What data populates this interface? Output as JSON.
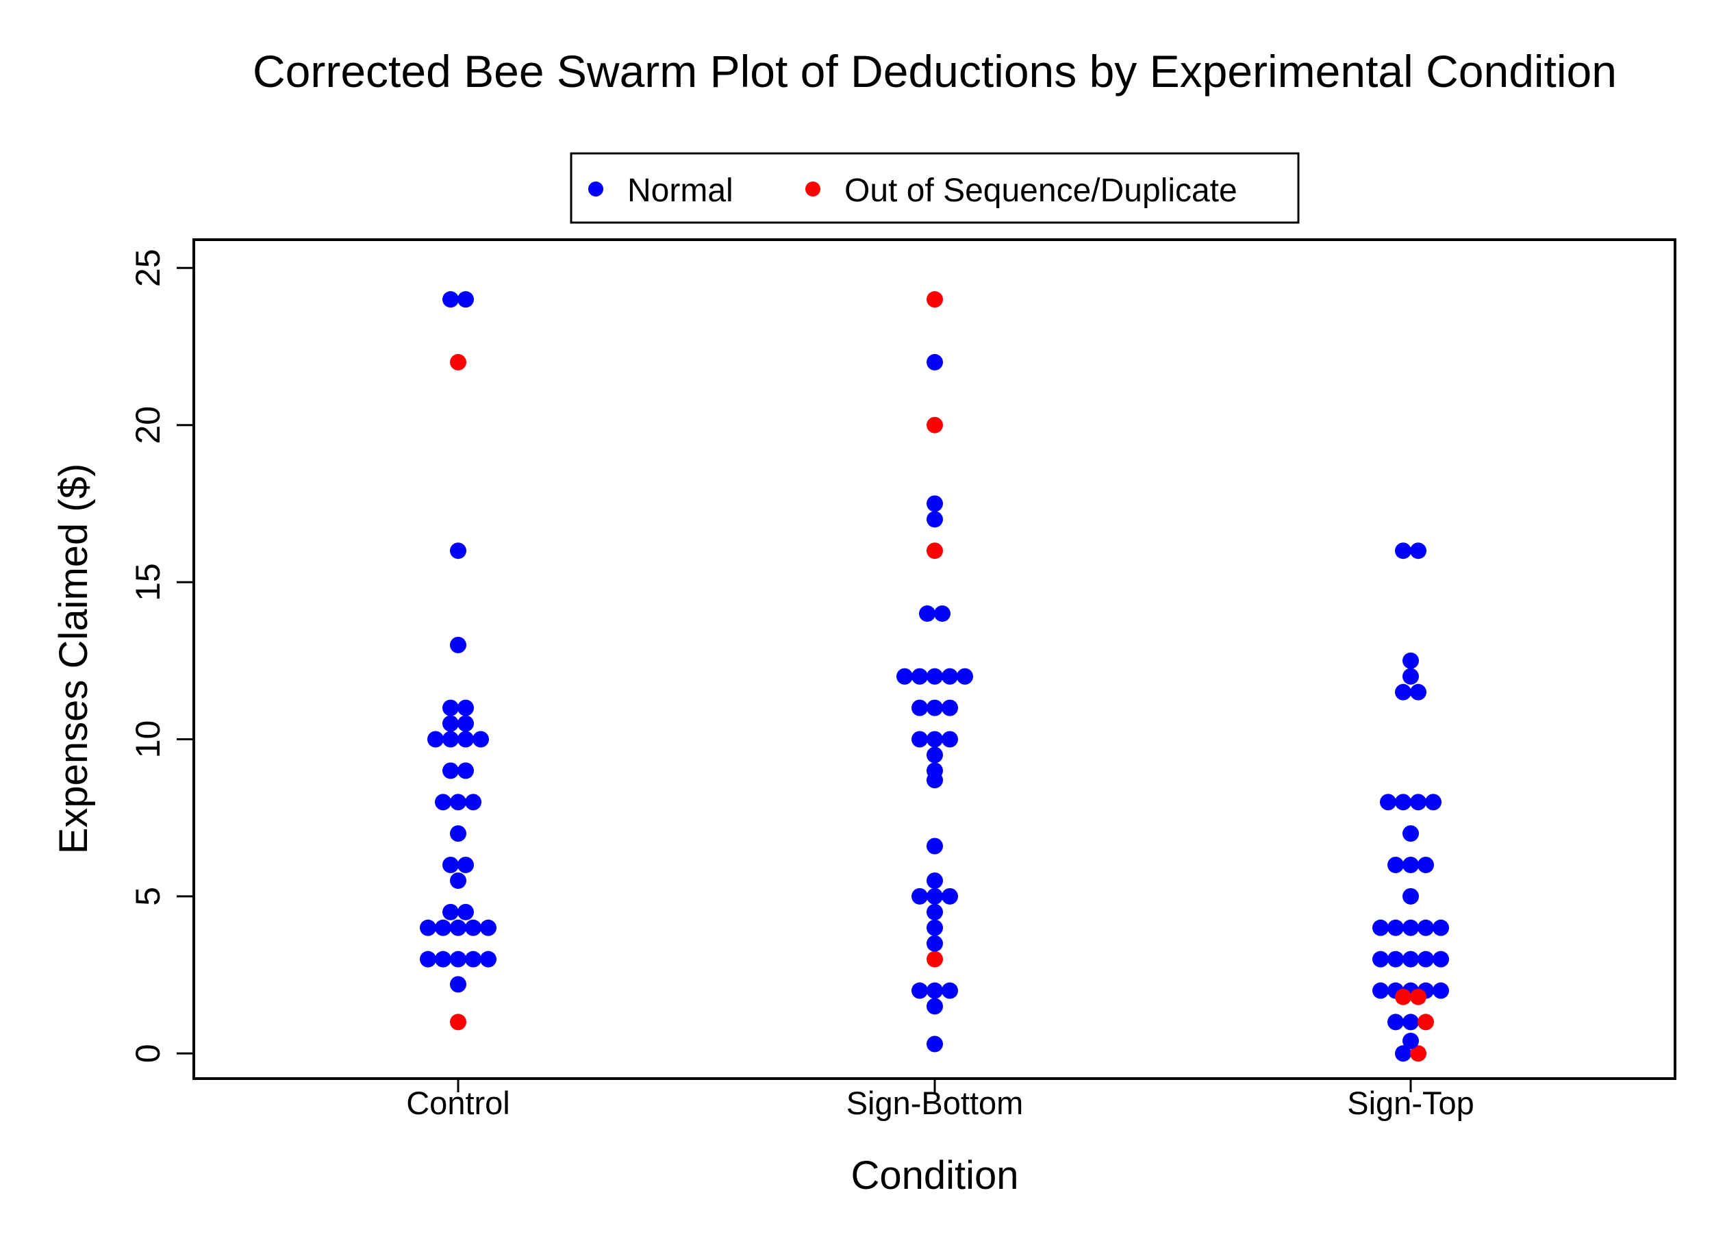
{
  "chart_data": {
    "type": "scatter",
    "title": "Corrected Bee Swarm Plot of Deductions by Experimental Condition",
    "xlabel": "Condition",
    "ylabel": "Expenses Claimed ($)",
    "categories": [
      "Control",
      "Sign-Bottom",
      "Sign-Top"
    ],
    "ylim": [
      -0.8,
      25.9
    ],
    "yticks": [
      0,
      5,
      10,
      15,
      20,
      25
    ],
    "grid": false,
    "legend_position": "top",
    "series": [
      {
        "name": "Normal",
        "color": "#0000ff",
        "values": {
          "Control": [
            24,
            24,
            16,
            13,
            11,
            11,
            10.5,
            10.5,
            10,
            10,
            10,
            10,
            9,
            9,
            8,
            8,
            8,
            7,
            6,
            6,
            5.5,
            4.5,
            4.5,
            4,
            4,
            4,
            4,
            4,
            3,
            3,
            3,
            3,
            3,
            2.2
          ],
          "Sign-Bottom": [
            22,
            17.5,
            17,
            14,
            14,
            12,
            12,
            12,
            12,
            12,
            11,
            11,
            11,
            10,
            10,
            10,
            9.5,
            9,
            8.7,
            6.6,
            5.5,
            5,
            5,
            5,
            4.5,
            4,
            3.5,
            2,
            2,
            2,
            1.5,
            0.3
          ],
          "Sign-Top": [
            16,
            16,
            12.5,
            12,
            11.5,
            11.5,
            8,
            8,
            8,
            8,
            7,
            6,
            6,
            6,
            5,
            4,
            4,
            4,
            4,
            4,
            3,
            3,
            3,
            3,
            3,
            2,
            2,
            2,
            2,
            2,
            1,
            1,
            0.4,
            0
          ]
        }
      },
      {
        "name": "Out of Sequence/Duplicate",
        "color": "#ff0000",
        "values": {
          "Control": [
            22,
            1
          ],
          "Sign-Bottom": [
            24,
            20,
            16,
            3
          ],
          "Sign-Top": [
            1.8,
            1.8,
            1,
            0
          ]
        }
      }
    ]
  }
}
